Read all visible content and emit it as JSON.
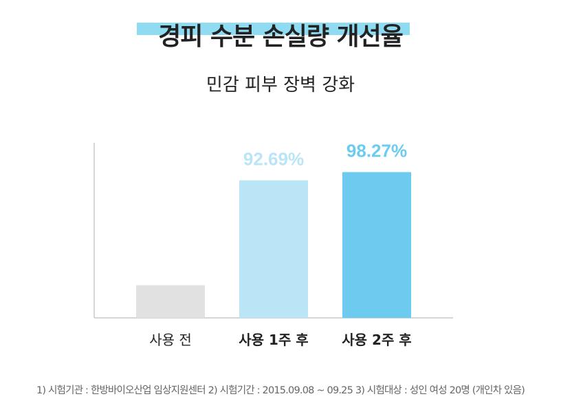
{
  "title": "경피 수분 손실량 개선율",
  "subtitle": "민감 피부 장벽 강화",
  "footnote": "1) 시험기관 : 한방바이오산업 임상지원센터   2) 시험기간 : 2015.09.08 ~ 09.25   3) 시험대상 : 성인 여성 20명 (개인차 있음)",
  "colors": {
    "title_highlight": "#8fdcf2",
    "axis": "#c8c8c8"
  },
  "chart_data": {
    "type": "bar",
    "categories": [
      "사용 전",
      "사용 1주 후",
      "사용 2주 후"
    ],
    "values": [
      22,
      92.69,
      98.27
    ],
    "data_labels": [
      "",
      "92.69%",
      "98.27%"
    ],
    "bar_colors": [
      "#e1e1e1",
      "#b9e5f6",
      "#6dcbef"
    ],
    "label_colors": [
      "#e1e1e1",
      "#b9e5f6",
      "#6dcbef"
    ],
    "category_bold": [
      false,
      true,
      true
    ],
    "ylim": [
      0,
      118
    ],
    "grid": false,
    "legend": "none",
    "xlabel": "",
    "ylabel": ""
  }
}
